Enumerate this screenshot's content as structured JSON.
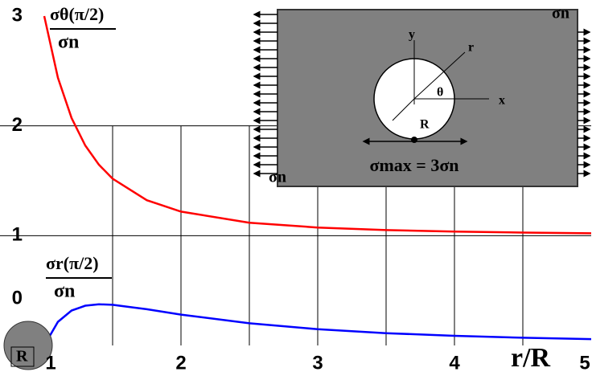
{
  "chart_data": {
    "type": "line",
    "xlabel": "r/R",
    "x": [
      1,
      1.1,
      1.2,
      1.3,
      1.4,
      1.5,
      1.75,
      2,
      2.5,
      3,
      3.5,
      4,
      4.5,
      5
    ],
    "series": [
      {
        "name": "σθ(π/2)",
        "denominator": "σn",
        "color": "#ff0000",
        "values": [
          3,
          2.438,
          2.071,
          1.821,
          1.646,
          1.519,
          1.323,
          1.219,
          1.118,
          1.074,
          1.051,
          1.037,
          1.028,
          1.022
        ]
      },
      {
        "name": "σr(π/2)",
        "denominator": "σn",
        "color": "#0000ff",
        "values": [
          0,
          0.215,
          0.318,
          0.362,
          0.375,
          0.37,
          0.33,
          0.281,
          0.202,
          0.148,
          0.112,
          0.088,
          0.07,
          0.058
        ]
      }
    ],
    "xlim": [
      1,
      5
    ],
    "xticks": [
      1,
      2,
      3,
      4,
      5
    ],
    "ylim": [
      0,
      3
    ],
    "yticks": [
      0,
      1,
      2,
      3
    ],
    "xgrid": [
      1.5,
      2,
      2.5,
      3,
      3.5,
      4,
      4.5
    ],
    "ygrid": [
      1,
      2
    ],
    "hole_label": "R",
    "inset": {
      "sigma_right": "σn",
      "sigma_left": "σn",
      "y": "y",
      "x": "x",
      "r": "r",
      "theta": "θ",
      "radius": "R",
      "max": "σmax = 3σn"
    }
  }
}
